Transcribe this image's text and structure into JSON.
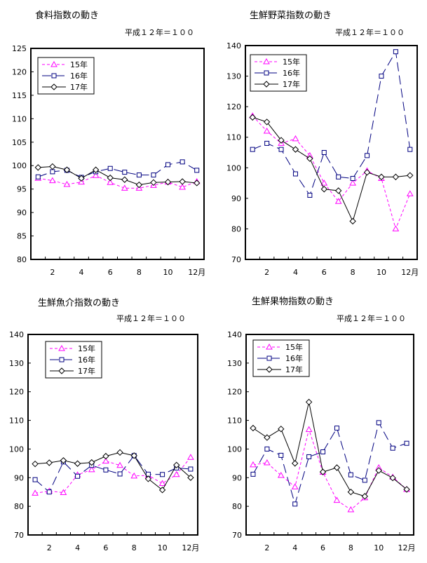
{
  "colors": {
    "s15": "#ff00ff",
    "s16": "#000080",
    "s17": "#000000"
  },
  "chart_data": [
    {
      "type": "line",
      "title": "食料指数の動き",
      "subtitle": "平成１２年＝１００",
      "x": [
        1,
        2,
        3,
        4,
        5,
        6,
        7,
        8,
        9,
        10,
        11,
        12
      ],
      "xticks": [
        "2",
        "4",
        "6",
        "8",
        "10",
        "12月"
      ],
      "yticks": [
        "80",
        "85",
        "90",
        "95",
        "100",
        "105",
        "110",
        "115",
        "120",
        "125"
      ],
      "ylim": [
        80,
        125
      ],
      "legend_position": "top-left",
      "series": [
        {
          "name": "15年",
          "marker": "triangle",
          "values": [
            97.3,
            96.8,
            96.0,
            96.5,
            97.9,
            96.4,
            95.2,
            95.2,
            95.8,
            96.5,
            95.4,
            96.6
          ]
        },
        {
          "name": "16年",
          "marker": "square",
          "values": [
            97.6,
            98.7,
            99.0,
            97.5,
            98.7,
            99.4,
            98.6,
            98.0,
            98.0,
            100.2,
            100.8,
            99.0
          ]
        },
        {
          "name": "17年",
          "marker": "diamond",
          "values": [
            99.6,
            99.8,
            99.1,
            97.3,
            99.1,
            97.4,
            97.0,
            95.9,
            96.4,
            96.5,
            96.6,
            96.3
          ]
        }
      ]
    },
    {
      "type": "line",
      "title": "生鮮野菜指数の動き",
      "subtitle": "平成１２年＝１００",
      "x": [
        1,
        2,
        3,
        4,
        5,
        6,
        7,
        8,
        9,
        10,
        11,
        12
      ],
      "xticks": [
        "2",
        "4",
        "6",
        "8",
        "10",
        "12月"
      ],
      "yticks": [
        "70",
        "80",
        "90",
        "100",
        "110",
        "120",
        "130",
        "140"
      ],
      "ylim": [
        70,
        140
      ],
      "legend_position": "top-left",
      "series": [
        {
          "name": "15年",
          "marker": "triangle",
          "values": [
            117,
            112,
            108,
            109.5,
            104,
            95,
            89,
            95,
            99,
            96.5,
            80,
            91.5
          ]
        },
        {
          "name": "16年",
          "marker": "square",
          "values": [
            106,
            108,
            106,
            98,
            91,
            105,
            97,
            96.5,
            104,
            130,
            138,
            106
          ]
        },
        {
          "name": "17年",
          "marker": "diamond",
          "values": [
            116.5,
            115,
            109,
            106,
            103,
            93,
            92.5,
            82.5,
            98.5,
            97,
            97,
            97.5
          ]
        }
      ]
    },
    {
      "type": "line",
      "title": "生鮮魚介指数の動き",
      "subtitle": "平成１２年＝１００",
      "x": [
        1,
        2,
        3,
        4,
        5,
        6,
        7,
        8,
        9,
        10,
        11,
        12
      ],
      "xticks": [
        "2",
        "4",
        "6",
        "8",
        "10",
        "12月"
      ],
      "yticks": [
        "70",
        "80",
        "90",
        "100",
        "110",
        "120",
        "130",
        "140"
      ],
      "ylim": [
        70,
        140
      ],
      "legend_position": "top-left",
      "series": [
        {
          "name": "15年",
          "marker": "triangle",
          "values": [
            84.6,
            85.3,
            84.8,
            91.0,
            92.8,
            95.8,
            94.3,
            90.6,
            90.8,
            88.0,
            91.1,
            97.1
          ]
        },
        {
          "name": "16年",
          "marker": "square",
          "values": [
            89.3,
            85.0,
            95.5,
            90.5,
            94.3,
            92.7,
            91.3,
            97.7,
            91.2,
            91.1,
            93.4,
            93.0
          ]
        },
        {
          "name": "17年",
          "marker": "diamond",
          "values": [
            94.8,
            95.2,
            96.0,
            94.9,
            95.3,
            97.5,
            98.8,
            97.7,
            89.6,
            85.7,
            94.4,
            90.0
          ]
        }
      ]
    },
    {
      "type": "line",
      "title": "生鮮果物指数の動き",
      "subtitle": "平成１２年＝１００",
      "x": [
        1,
        2,
        3,
        4,
        5,
        6,
        7,
        8,
        9,
        10,
        11,
        12
      ],
      "xticks": [
        "2",
        "4",
        "6",
        "8",
        "10",
        "12月"
      ],
      "yticks": [
        "70",
        "80",
        "90",
        "100",
        "110",
        "120",
        "130",
        "140"
      ],
      "ylim": [
        70,
        140
      ],
      "legend_position": "top-left",
      "series": [
        {
          "name": "15年",
          "marker": "triangle",
          "values": [
            94.5,
            95.2,
            90.8,
            86.8,
            106.8,
            91.9,
            82.1,
            78.8,
            83.0,
            93.5,
            90.2,
            85.9
          ]
        },
        {
          "name": "16年",
          "marker": "square",
          "values": [
            91.2,
            100.0,
            97.8,
            80.8,
            97.3,
            99.0,
            107.3,
            91.0,
            89.1,
            109.2,
            100.3,
            102.0
          ]
        },
        {
          "name": "17年",
          "marker": "diamond",
          "values": [
            107.3,
            104.0,
            107.0,
            95.0,
            116.4,
            92.0,
            93.5,
            85.0,
            83.5,
            92.5,
            89.9,
            85.9
          ]
        }
      ]
    }
  ]
}
